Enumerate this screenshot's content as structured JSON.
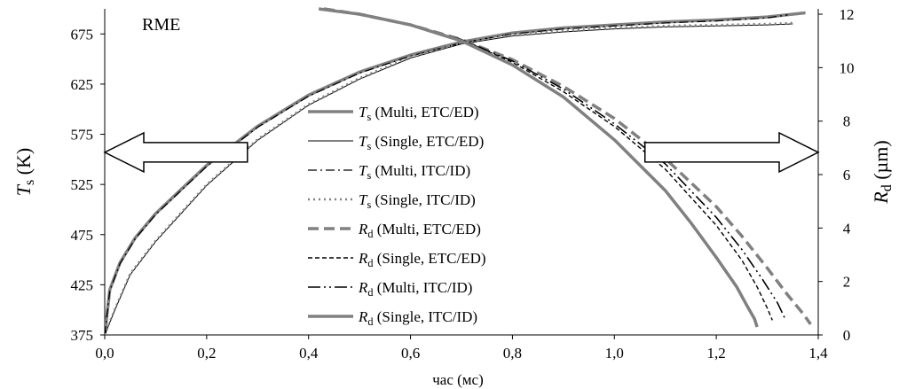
{
  "chart_data": {
    "type": "line",
    "annotation": "RME",
    "xlabel": "час (мс)",
    "ylabel_left": {
      "main": "T",
      "sub": "s",
      "unit": " (K)"
    },
    "ylabel_right": {
      "main": "R",
      "sub": "d",
      "unit": " (µm)"
    },
    "xlim": [
      0.0,
      1.4
    ],
    "ylim_left": [
      375,
      700
    ],
    "ylim_right": [
      0,
      12.2
    ],
    "x_ticks": [
      "0,0",
      "0,2",
      "0,4",
      "0,6",
      "0,8",
      "1,0",
      "1,2",
      "1,4"
    ],
    "x_tick_values": [
      0.0,
      0.2,
      0.4,
      0.6,
      0.8,
      1.0,
      1.2,
      1.4
    ],
    "y_left_ticks": [
      "375",
      "425",
      "475",
      "525",
      "575",
      "625",
      "675"
    ],
    "y_left_tick_values": [
      375,
      425,
      475,
      525,
      575,
      625,
      675
    ],
    "y_right_ticks": [
      "0",
      "2",
      "4",
      "6",
      "8",
      "10",
      "12"
    ],
    "y_right_tick_values": [
      0,
      2,
      4,
      6,
      8,
      10,
      12
    ],
    "grid": false,
    "legend_placement": "center",
    "arrows": [
      {
        "direction": "left",
        "points_to": "left-axis",
        "anchor_x": 0.0,
        "anchor_y_left": 557,
        "tail_x": 0.28
      },
      {
        "direction": "right",
        "points_to": "right-axis",
        "anchor_x": 1.4,
        "anchor_y_left": 557,
        "tail_x": 1.06
      }
    ],
    "series": [
      {
        "name": {
          "main": "T",
          "sub": "s",
          "rest": " (Multi, ETC/ED)"
        },
        "axis": "left",
        "color": "#808080",
        "width": 3.5,
        "dash": "",
        "x": [
          0.0,
          0.01,
          0.03,
          0.06,
          0.1,
          0.15,
          0.2,
          0.3,
          0.4,
          0.5,
          0.6,
          0.7,
          0.8,
          0.9,
          1.0,
          1.1,
          1.2,
          1.3,
          1.375
        ],
        "y": [
          375,
          420,
          447,
          472,
          496,
          520,
          544,
          583,
          614,
          637,
          654,
          667,
          676,
          681,
          684,
          687,
          689,
          692,
          696
        ]
      },
      {
        "name": {
          "main": "T",
          "sub": "s",
          "rest": " (Single, ETC/ED)"
        },
        "axis": "left",
        "color": "#000000",
        "width": 1.0,
        "dash": "",
        "x": [
          0.0,
          0.02,
          0.05,
          0.1,
          0.15,
          0.2,
          0.3,
          0.4,
          0.5,
          0.6,
          0.7,
          0.8,
          0.9,
          1.0,
          1.1,
          1.2,
          1.3,
          1.35
        ],
        "y": [
          375,
          400,
          435,
          468,
          496,
          524,
          569,
          604,
          630,
          651,
          665,
          673,
          677,
          680,
          682,
          683,
          684,
          685
        ]
      },
      {
        "name": {
          "main": "T",
          "sub": "s",
          "rest": " (Multi, ITC/ID)"
        },
        "axis": "left",
        "color": "#000000",
        "width": 1.3,
        "dash": "10,4,2,4",
        "x": [
          0.0,
          0.01,
          0.03,
          0.06,
          0.1,
          0.15,
          0.2,
          0.3,
          0.4,
          0.5,
          0.6,
          0.7,
          0.8,
          0.9,
          1.0,
          1.1,
          1.2,
          1.3,
          1.34
        ],
        "y": [
          375,
          419,
          446,
          471,
          495,
          519,
          543,
          582,
          613,
          636,
          653,
          666,
          675,
          680,
          683,
          686,
          688,
          691,
          694
        ]
      },
      {
        "name": {
          "main": "T",
          "sub": "s",
          "rest": " (Single, ITC/ID)"
        },
        "axis": "left",
        "color": "#808080",
        "width": 2.5,
        "dash": "2,4",
        "x": [
          0.0,
          0.02,
          0.05,
          0.1,
          0.15,
          0.2,
          0.3,
          0.4,
          0.5,
          0.6,
          0.7,
          0.8,
          0.9,
          1.0,
          1.1,
          1.2,
          1.3,
          1.35
        ],
        "y": [
          375,
          401,
          436,
          469,
          497,
          525,
          570,
          605,
          631,
          652,
          666,
          674,
          678,
          681,
          683,
          684,
          685,
          686
        ]
      },
      {
        "name": {
          "main": "R",
          "sub": "d",
          "rest": " (Multi, ETC/ED)"
        },
        "axis": "right",
        "color": "#808080",
        "width": 3.5,
        "dash": "12,6",
        "x": [
          0.43,
          0.5,
          0.6,
          0.7,
          0.8,
          0.9,
          1.0,
          1.1,
          1.2,
          1.25,
          1.3,
          1.34,
          1.37,
          1.385
        ],
        "y": [
          12.2,
          12.0,
          11.6,
          11.05,
          10.3,
          9.3,
          8.1,
          6.6,
          4.8,
          3.7,
          2.5,
          1.5,
          0.8,
          0.4
        ]
      },
      {
        "name": {
          "main": "R",
          "sub": "d",
          "rest": " (Single, ETC/ED)"
        },
        "axis": "right",
        "color": "#000000",
        "width": 1.4,
        "dash": "5,3",
        "x": [
          0.43,
          0.5,
          0.6,
          0.7,
          0.8,
          0.9,
          1.0,
          1.1,
          1.2,
          1.25,
          1.28,
          1.3,
          1.31
        ],
        "y": [
          12.2,
          12.0,
          11.6,
          11.05,
          10.2,
          9.1,
          7.8,
          6.2,
          4.1,
          2.8,
          1.8,
          1.0,
          0.55
        ]
      },
      {
        "name": {
          "main": "R",
          "sub": "d",
          "rest": " (Multi, ITC/ID)"
        },
        "axis": "right",
        "color": "#000000",
        "width": 1.6,
        "dash": "14,4,2,4,2,4",
        "x": [
          0.43,
          0.5,
          0.6,
          0.7,
          0.8,
          0.9,
          1.0,
          1.1,
          1.2,
          1.25,
          1.29,
          1.32,
          1.335
        ],
        "y": [
          12.2,
          12.0,
          11.6,
          11.05,
          10.25,
          9.2,
          7.9,
          6.4,
          4.4,
          3.2,
          2.1,
          1.2,
          0.6
        ]
      },
      {
        "name": {
          "main": "R",
          "sub": "d",
          "rest": " (Single, ITC/ID)"
        },
        "axis": "right",
        "color": "#808080",
        "width": 3.5,
        "dash": "",
        "x": [
          0.42,
          0.5,
          0.6,
          0.7,
          0.8,
          0.9,
          1.0,
          1.1,
          1.15,
          1.2,
          1.24,
          1.26,
          1.275,
          1.28
        ],
        "y": [
          12.2,
          12.0,
          11.6,
          11.0,
          10.1,
          8.9,
          7.3,
          5.4,
          4.2,
          2.9,
          1.8,
          1.1,
          0.6,
          0.3
        ]
      }
    ]
  }
}
